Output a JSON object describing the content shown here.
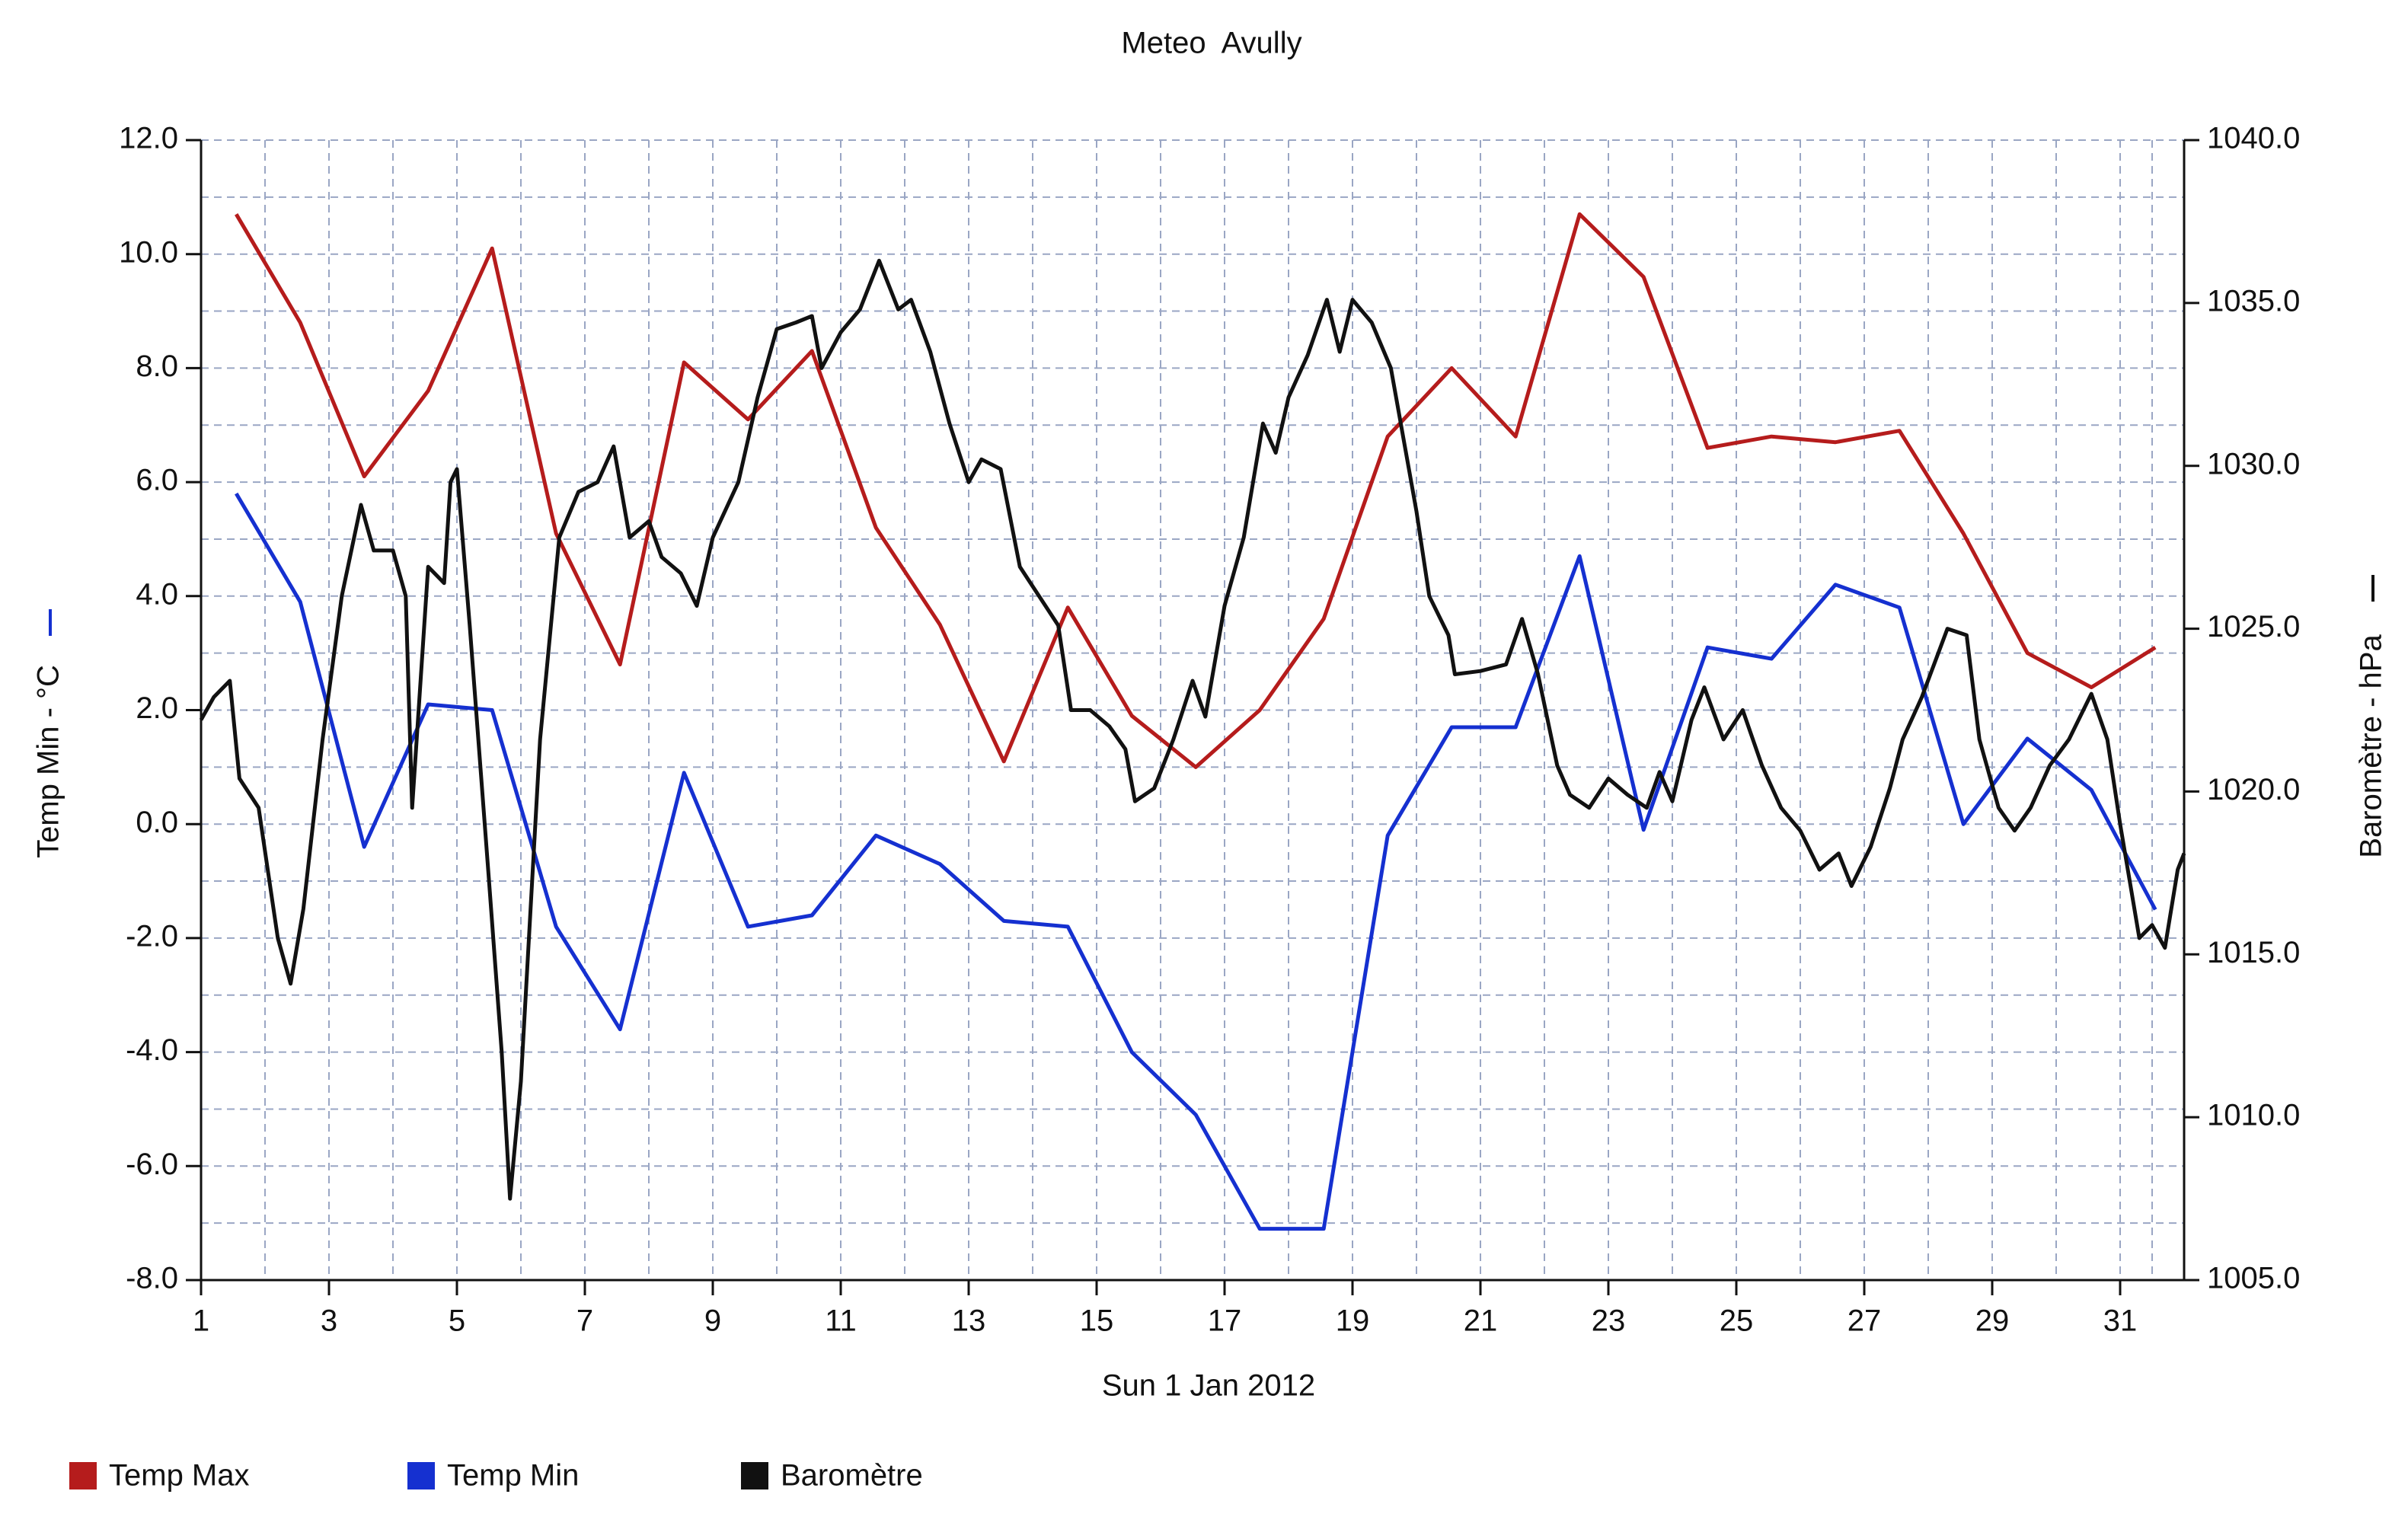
{
  "chart_data": {
    "type": "line",
    "title": "Meteo  Avully",
    "x_label": "Sun 1 Jan 2012",
    "y_label": "Temp Min - °C",
    "y2_label": "Baromètre - hPa",
    "grid": true,
    "legend": "bottom-left",
    "xlim": [
      1,
      32
    ],
    "xticks": [
      1,
      3,
      5,
      7,
      9,
      11,
      13,
      15,
      17,
      19,
      21,
      23,
      25,
      27,
      29,
      31
    ],
    "ylim": [
      -8,
      12
    ],
    "yticks": [
      {
        "value": -8,
        "label": "-8.0"
      },
      {
        "value": -6,
        "label": "-6.0"
      },
      {
        "value": -4,
        "label": "-4.0"
      },
      {
        "value": -2,
        "label": "-2.0"
      },
      {
        "value": 0,
        "label": "0.0"
      },
      {
        "value": 2,
        "label": "2.0"
      },
      {
        "value": 4,
        "label": "4.0"
      },
      {
        "value": 6,
        "label": "6.0"
      },
      {
        "value": 8,
        "label": "8.0"
      },
      {
        "value": 10,
        "label": "10.0"
      },
      {
        "value": 12,
        "label": "12.0"
      }
    ],
    "y2lim": [
      1005,
      1040
    ],
    "y2ticks": [
      {
        "value": 1005,
        "label": "1005.0"
      },
      {
        "value": 1010,
        "label": "1010.0"
      },
      {
        "value": 1015,
        "label": "1015.0"
      },
      {
        "value": 1020,
        "label": "1020.0"
      },
      {
        "value": 1025,
        "label": "1025.0"
      },
      {
        "value": 1030,
        "label": "1030.0"
      },
      {
        "value": 1035,
        "label": "1035.0"
      },
      {
        "value": 1040,
        "label": "1040.0"
      }
    ],
    "series": [
      {
        "name": "Temp Max",
        "color": "#b51c1c",
        "x": [
          1.55,
          2.55,
          3.55,
          4.55,
          5.55,
          6.55,
          7.55,
          8.55,
          9.55,
          10.55,
          11.55,
          12.55,
          13.55,
          14.55,
          15.55,
          16.55,
          17.55,
          18.55,
          19.55,
          20.55,
          21.55,
          22.55,
          23.55,
          24.55,
          25.55,
          26.55,
          27.55,
          28.55,
          29.55,
          30.55,
          31.55
        ],
        "values": [
          10.7,
          8.8,
          6.1,
          7.6,
          10.1,
          5.1,
          2.8,
          8.1,
          7.1,
          8.3,
          5.2,
          3.5,
          1.1,
          3.8,
          1.9,
          1.0,
          2.0,
          3.6,
          6.8,
          8.0,
          6.8,
          10.7,
          9.6,
          6.6,
          6.8,
          6.7,
          6.9,
          5.1,
          3.0,
          2.4,
          3.1
        ]
      },
      {
        "name": "Temp Min",
        "color": "#1530d0",
        "x": [
          1.55,
          2.55,
          3.55,
          4.55,
          5.55,
          6.55,
          7.55,
          8.55,
          9.55,
          10.55,
          11.55,
          12.55,
          13.55,
          14.55,
          15.55,
          16.55,
          17.55,
          18.55,
          19.55,
          20.55,
          21.55,
          22.55,
          23.55,
          24.55,
          25.55,
          26.55,
          27.55,
          28.55,
          29.55,
          30.55,
          31.55
        ],
        "values": [
          5.8,
          3.9,
          -0.4,
          2.1,
          2.0,
          -1.8,
          -3.6,
          0.9,
          -1.8,
          -1.6,
          -0.2,
          -0.7,
          -1.7,
          -1.8,
          -4.0,
          -5.1,
          -7.1,
          -7.1,
          -0.2,
          1.7,
          1.7,
          4.7,
          -0.1,
          3.1,
          2.9,
          4.2,
          3.8,
          0.0,
          1.5,
          0.6,
          -1.5
        ]
      },
      {
        "name": "Baromètre",
        "color": "#111111",
        "axis": "y2",
        "x": [
          1.0,
          1.2,
          1.45,
          1.6,
          1.9,
          2.2,
          2.4,
          2.6,
          2.9,
          3.2,
          3.5,
          3.7,
          4.0,
          4.2,
          4.3,
          4.55,
          4.8,
          4.9,
          5.0,
          5.2,
          5.5,
          5.7,
          5.83,
          6.0,
          6.3,
          6.6,
          6.9,
          7.2,
          7.45,
          7.7,
          8.0,
          8.2,
          8.5,
          8.75,
          9.0,
          9.4,
          9.7,
          10.0,
          10.3,
          10.55,
          10.7,
          11.0,
          11.3,
          11.6,
          11.9,
          12.1,
          12.4,
          12.7,
          13.0,
          13.2,
          13.5,
          13.8,
          14.1,
          14.4,
          14.6,
          14.9,
          15.2,
          15.45,
          15.6,
          15.9,
          16.2,
          16.5,
          16.7,
          17.0,
          17.3,
          17.6,
          17.8,
          18.0,
          18.3,
          18.6,
          18.8,
          19.0,
          19.3,
          19.6,
          20.0,
          20.2,
          20.5,
          20.6,
          21.0,
          21.4,
          21.65,
          21.9,
          22.2,
          22.4,
          22.7,
          23.0,
          23.3,
          23.6,
          23.8,
          24.0,
          24.3,
          24.5,
          24.8,
          25.1,
          25.4,
          25.7,
          26.0,
          26.3,
          26.6,
          26.8,
          27.1,
          27.4,
          27.6,
          27.9,
          28.3,
          28.6,
          28.8,
          29.1,
          29.35,
          29.6,
          29.9,
          30.2,
          30.55,
          30.8,
          31.0,
          31.3,
          31.5,
          31.7,
          31.9,
          32.0
        ],
        "values": [
          1022.2,
          1022.9,
          1023.4,
          1020.4,
          1019.5,
          1015.5,
          1014.1,
          1016.4,
          1021.6,
          1026.0,
          1028.8,
          1027.4,
          1027.4,
          1026.0,
          1019.5,
          1026.9,
          1026.4,
          1029.5,
          1029.9,
          1025.1,
          1017.3,
          1012.0,
          1007.5,
          1011.1,
          1021.6,
          1027.8,
          1029.2,
          1029.5,
          1030.6,
          1027.8,
          1028.3,
          1027.2,
          1026.7,
          1025.7,
          1027.8,
          1029.5,
          1032.1,
          1034.2,
          1034.4,
          1034.6,
          1033.0,
          1034.1,
          1034.8,
          1036.3,
          1034.8,
          1035.1,
          1033.5,
          1031.3,
          1029.5,
          1030.2,
          1029.9,
          1026.9,
          1026.0,
          1025.1,
          1022.5,
          1022.5,
          1022.0,
          1021.3,
          1019.7,
          1020.1,
          1021.6,
          1023.4,
          1022.3,
          1025.7,
          1027.8,
          1031.3,
          1030.4,
          1032.1,
          1033.4,
          1035.1,
          1033.5,
          1035.1,
          1034.4,
          1033.0,
          1028.6,
          1026.0,
          1024.8,
          1023.6,
          1023.7,
          1023.9,
          1025.3,
          1023.6,
          1020.8,
          1019.9,
          1019.5,
          1020.4,
          1019.9,
          1019.5,
          1020.6,
          1019.7,
          1022.2,
          1023.2,
          1021.6,
          1022.5,
          1020.8,
          1019.5,
          1018.8,
          1017.6,
          1018.1,
          1017.1,
          1018.3,
          1020.1,
          1021.6,
          1022.9,
          1025.0,
          1024.8,
          1021.6,
          1019.5,
          1018.8,
          1019.5,
          1020.8,
          1021.6,
          1023.0,
          1021.6,
          1019.0,
          1015.5,
          1015.9,
          1015.2,
          1017.6,
          1018.1
        ]
      }
    ]
  }
}
